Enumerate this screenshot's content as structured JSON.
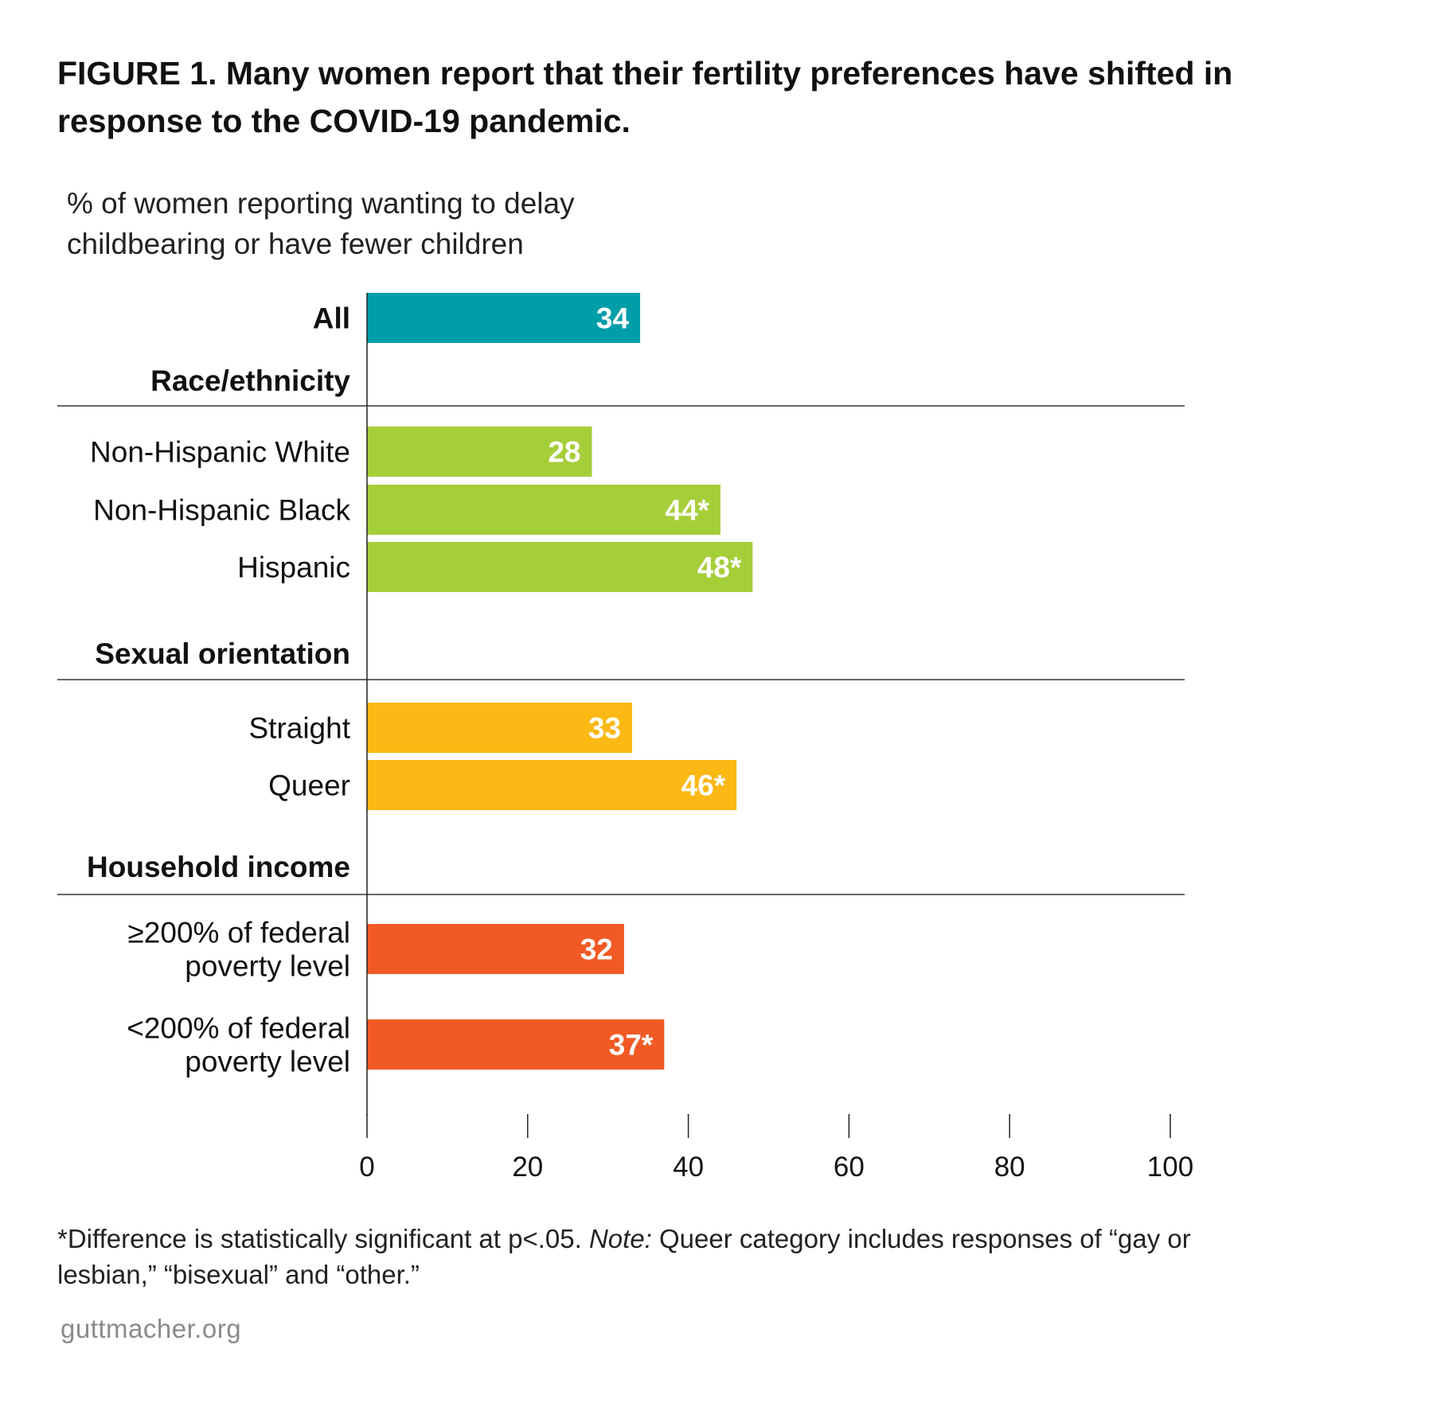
{
  "title": "FIGURE 1. Many women report that their fertility preferences have shifted in response to the COVID-19 pandemic.",
  "subtitle": "% of women reporting wanting to delay childbearing or have fewer children",
  "chart_data": {
    "type": "bar",
    "orientation": "horizontal",
    "xlim": [
      0,
      100
    ],
    "xticks": [
      0,
      20,
      40,
      60,
      80,
      100
    ],
    "grid": false,
    "groups": [
      {
        "header": "",
        "color": "#009ea8",
        "bars": [
          {
            "label": [
              "All"
            ],
            "value": 34,
            "display": "34",
            "bold": true
          }
        ]
      },
      {
        "header": "Race/ethnicity",
        "color": "#a6ce39",
        "bars": [
          {
            "label": [
              "Non-Hispanic White"
            ],
            "value": 28,
            "display": "28"
          },
          {
            "label": [
              "Non-Hispanic Black"
            ],
            "value": 44,
            "display": "44*"
          },
          {
            "label": [
              "Hispanic"
            ],
            "value": 48,
            "display": "48*"
          }
        ]
      },
      {
        "header": "Sexual orientation",
        "color": "#fcb814",
        "bars": [
          {
            "label": [
              "Straight"
            ],
            "value": 33,
            "display": "33"
          },
          {
            "label": [
              "Queer"
            ],
            "value": 46,
            "display": "46*"
          }
        ]
      },
      {
        "header": "Household income",
        "color": "#f15a24",
        "bars": [
          {
            "label": [
              "≥200% of federal",
              "poverty level"
            ],
            "value": 32,
            "display": "32"
          },
          {
            "label": [
              "<200% of federal",
              "poverty level"
            ],
            "value": 37,
            "display": "37*"
          }
        ]
      }
    ]
  },
  "footnote": {
    "part1": "*Difference is statistically significant at p<.05. ",
    "note_label": "Note:",
    "part2": " Queer category includes responses of “gay or lesbian,” “bisexual” and “other.”"
  },
  "source": "guttmacher.org"
}
